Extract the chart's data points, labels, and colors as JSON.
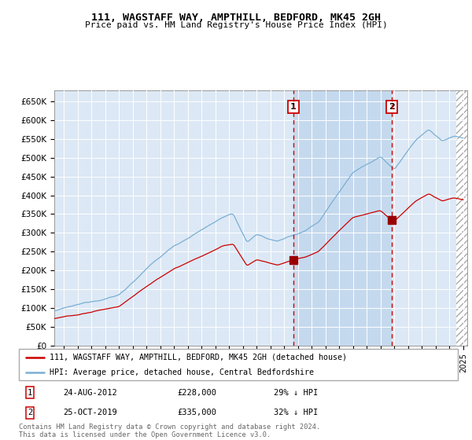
{
  "title": "111, WAGSTAFF WAY, AMPTHILL, BEDFORD, MK45 2GH",
  "subtitle": "Price paid vs. HM Land Registry's House Price Index (HPI)",
  "ylabel_ticks": [
    "£0",
    "£50K",
    "£100K",
    "£150K",
    "£200K",
    "£250K",
    "£300K",
    "£350K",
    "£400K",
    "£450K",
    "£500K",
    "£550K",
    "£600K",
    "£650K"
  ],
  "ytick_values": [
    0,
    50000,
    100000,
    150000,
    200000,
    250000,
    300000,
    350000,
    400000,
    450000,
    500000,
    550000,
    600000,
    650000
  ],
  "ylim": [
    0,
    680000
  ],
  "xlim_start": 1995.3,
  "xlim_end": 2025.3,
  "transaction1": {
    "year": 2012.646,
    "price": 228000,
    "label": "1",
    "date": "24-AUG-2012"
  },
  "transaction2": {
    "year": 2019.831,
    "price": 335000,
    "label": "2",
    "date": "25-OCT-2019"
  },
  "legend_line1": "111, WAGSTAFF WAY, AMPTHILL, BEDFORD, MK45 2GH (detached house)",
  "legend_line2": "HPI: Average price, detached house, Central Bedfordshire",
  "table_row1": [
    "1",
    "24-AUG-2012",
    "£228,000",
    "29% ↓ HPI"
  ],
  "table_row2": [
    "2",
    "25-OCT-2019",
    "£335,000",
    "32% ↓ HPI"
  ],
  "footer": "Contains HM Land Registry data © Crown copyright and database right 2024.\nThis data is licensed under the Open Government Licence v3.0.",
  "line_color_red": "#cc0000",
  "line_color_blue": "#7aafd4",
  "bg_plot_color": "#dce8f5",
  "fill_between_color": "#c5d9ee",
  "marker_color": "#990000",
  "dashed_line_color": "#cc0000",
  "hatch_region_start": 2024.5
}
